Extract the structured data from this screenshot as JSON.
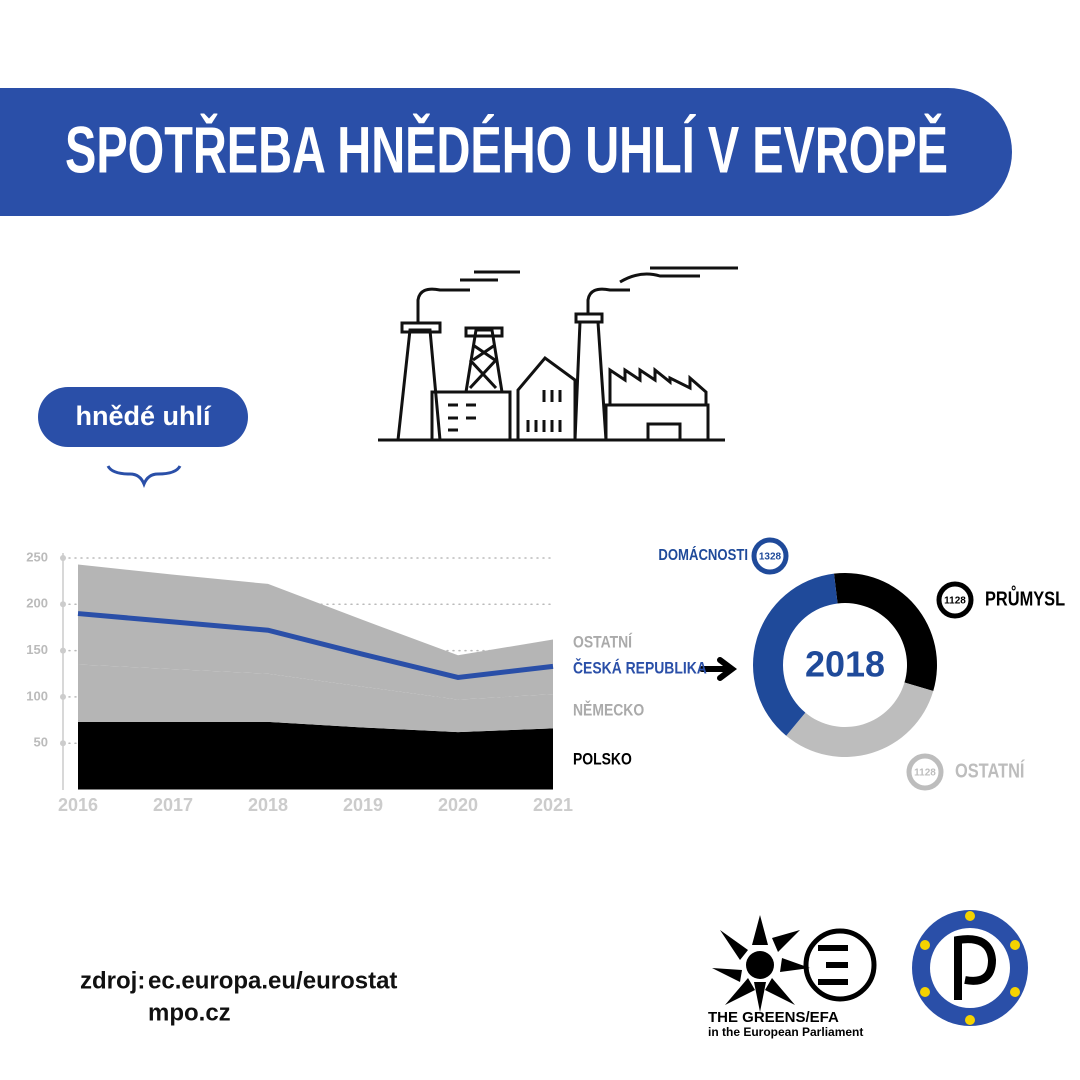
{
  "header": {
    "title": "SPOTŘEBA HNĚDÉHO UHLÍ V EVROPĚ"
  },
  "badge": "hnědé uhlí",
  "chart_data": [
    {
      "type": "area",
      "categories": [
        "2016",
        "2017",
        "2018",
        "2019",
        "2020",
        "2021"
      ],
      "stacked": true,
      "ylim": [
        0,
        250
      ],
      "yticks": [
        50,
        100,
        150,
        200,
        250
      ],
      "grid": true,
      "series": [
        {
          "name": "POLSKO",
          "color": "#000000",
          "values": [
            73,
            73,
            73,
            67,
            62,
            66
          ]
        },
        {
          "name": "NĚMECKO",
          "color": "#b5b5b5",
          "values": [
            62,
            57,
            52,
            44,
            35,
            37
          ]
        },
        {
          "name": "OSTATNÍ",
          "color": "#b5b5b5",
          "values": [
            108,
            102,
            97,
            72,
            48,
            59
          ]
        },
        {
          "name": "ČESKÁ REPUBLIKA",
          "color": "#2a4fa8",
          "type": "line",
          "values": [
            190,
            181,
            172,
            146,
            121,
            133
          ]
        }
      ]
    },
    {
      "type": "donut",
      "center_label": "2018",
      "categories": [
        "PRŮMYSL",
        "OSTATNÍ",
        "DOMÁCNOSTI"
      ],
      "values": [
        1128,
        1128,
        1328
      ],
      "colors": [
        "#000000",
        "#bdbdbd",
        "#1f4a9a"
      ]
    }
  ],
  "source": {
    "label": "zdroj:",
    "lines": [
      "ec.europa.eu/eurostat",
      "mpo.cz"
    ]
  },
  "logos": {
    "greens": "THE GREENS/EFA",
    "greens_sub": "in the European Parliament"
  }
}
